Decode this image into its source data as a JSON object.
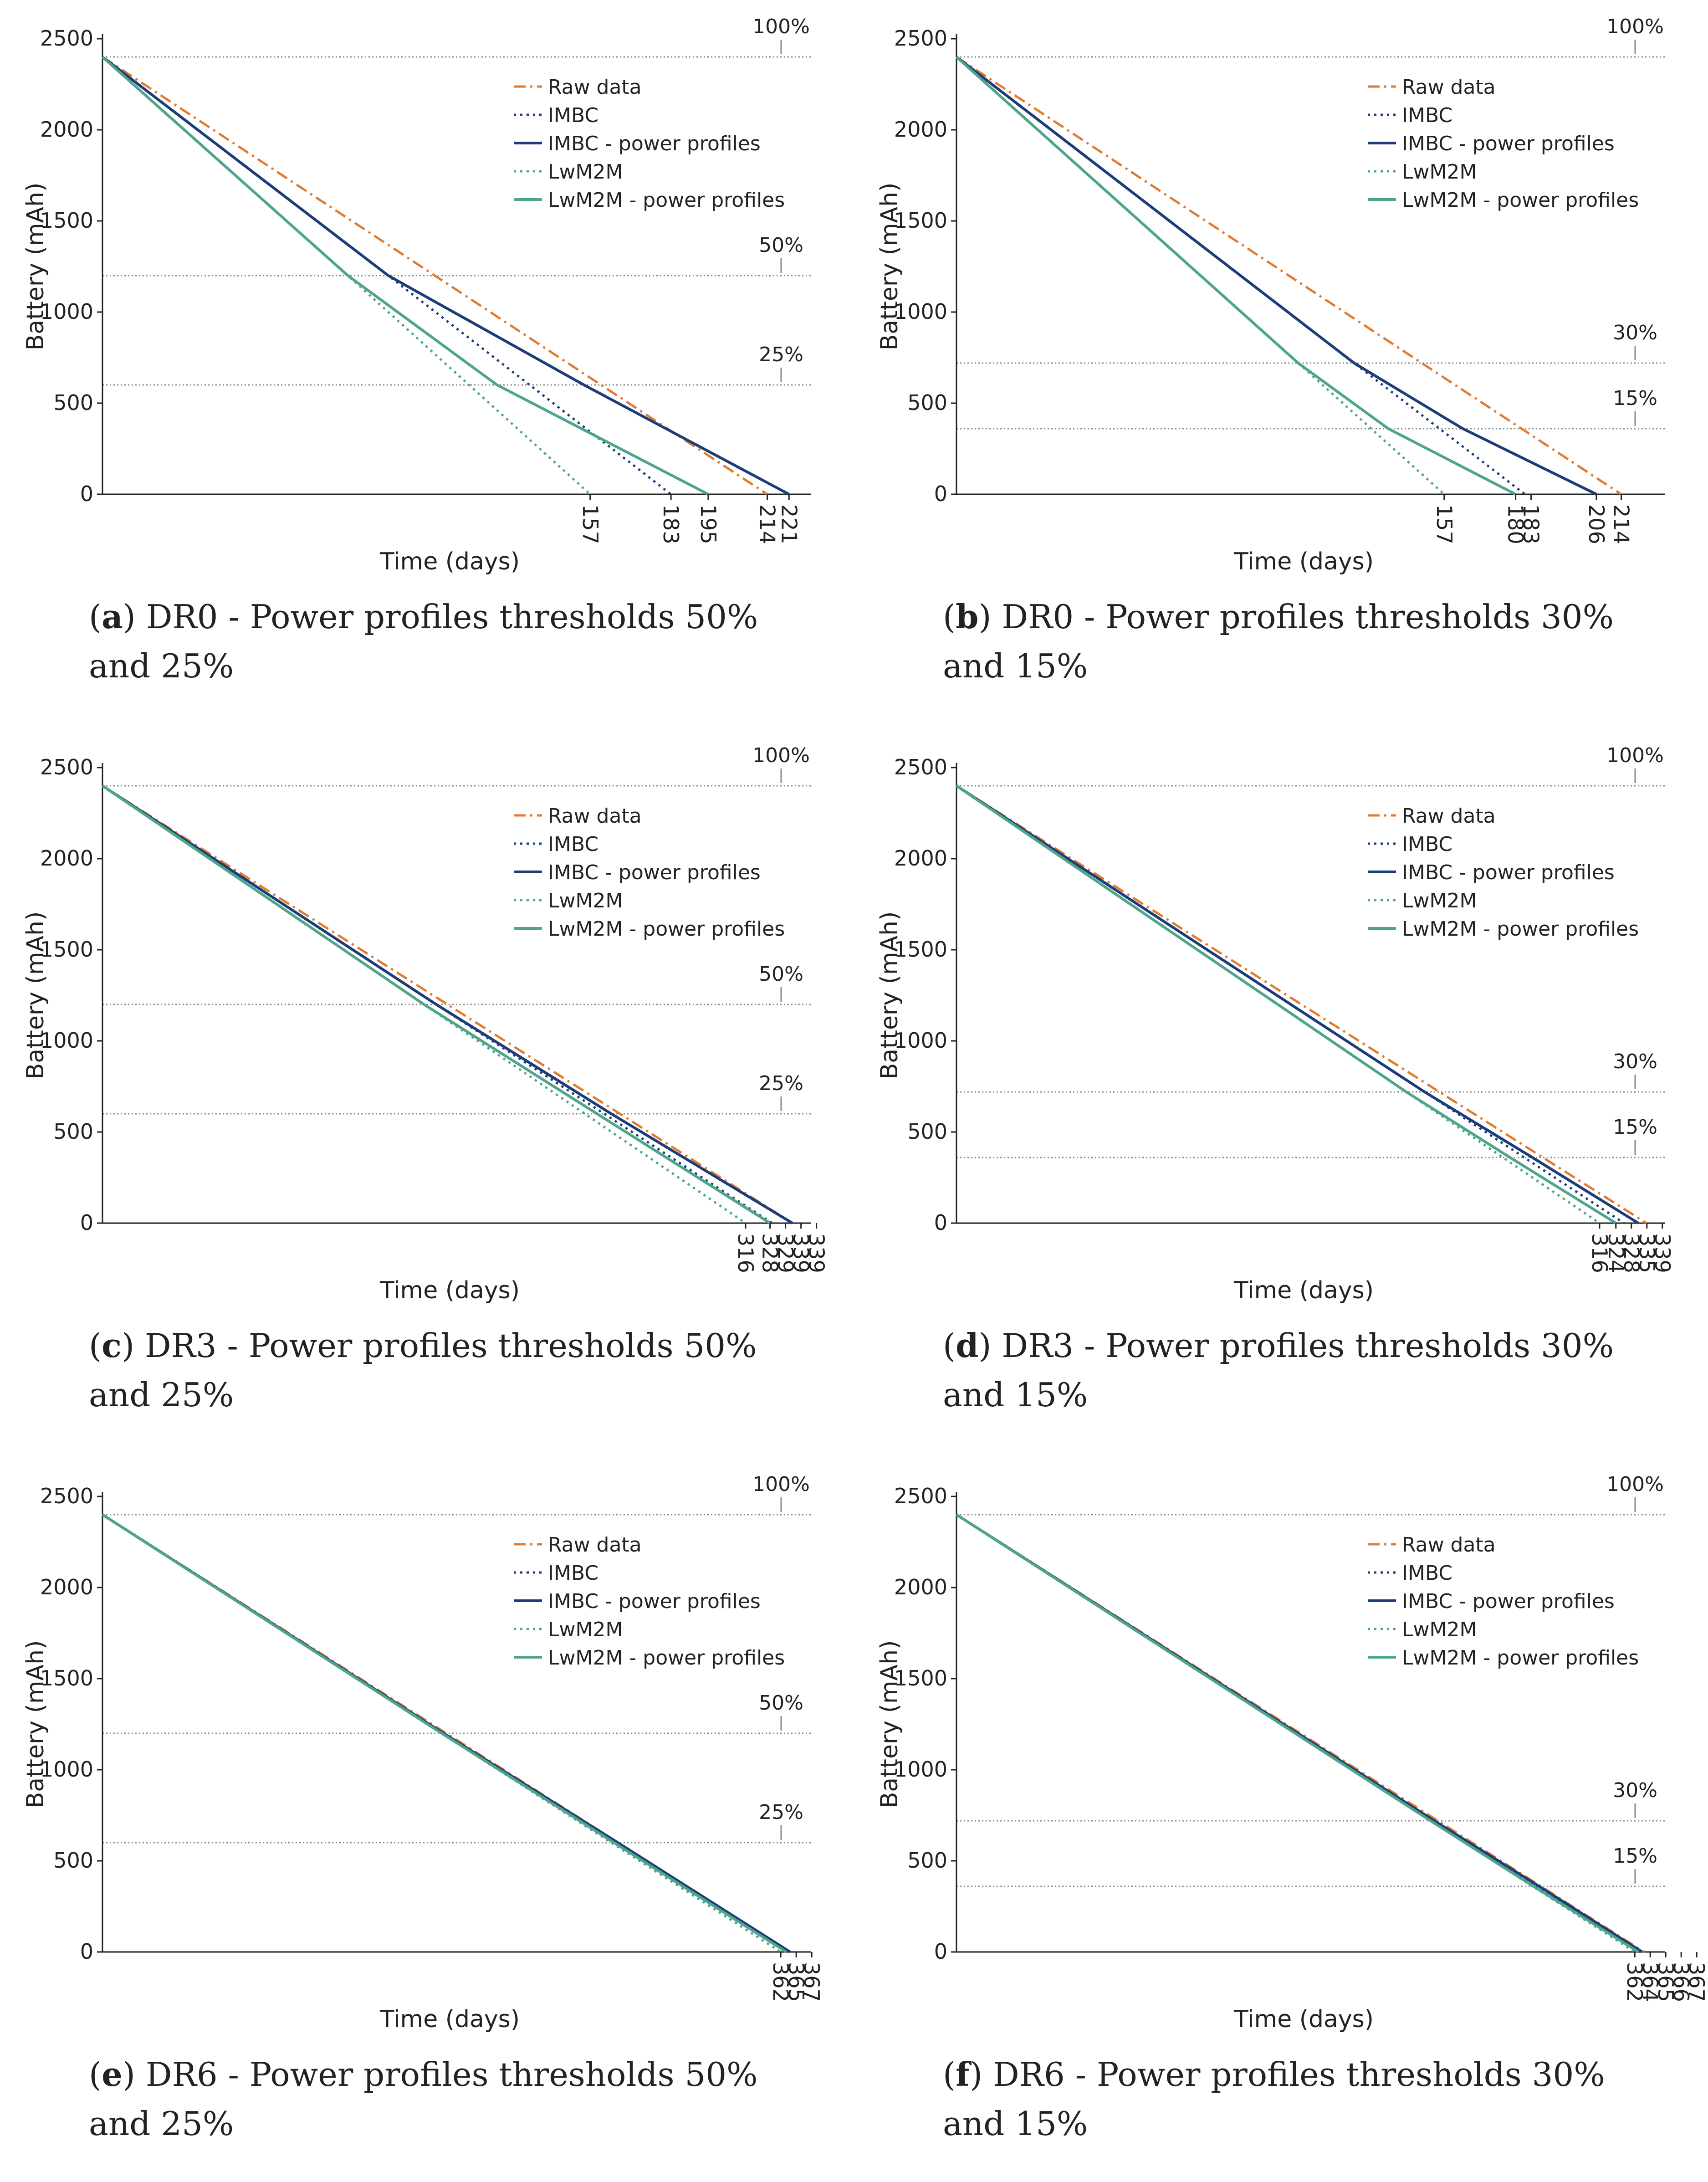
{
  "colors": {
    "raw": "#e07b30",
    "imbc": "#1c3d7a",
    "lwm2m": "#4fa58a",
    "ref": "#888888",
    "axis": "#222222"
  },
  "chart_data": [
    {
      "id": "a",
      "type": "line",
      "caption": {
        "letter": "a",
        "text": " DR0 - Power profiles thresholds 50% and 25%"
      },
      "xlabel": "Time (days)",
      "ylabel": "Battery (mAh)",
      "xlim": [
        0,
        228
      ],
      "ylim": [
        0,
        2500
      ],
      "yticks": [
        0,
        500,
        1000,
        1500,
        2000,
        2500
      ],
      "xticks": [
        "157",
        "183",
        "195",
        "214",
        "221"
      ],
      "reference_lines": [
        {
          "y": 2400,
          "label": "100%"
        },
        {
          "y": 1200,
          "label": "50%"
        },
        {
          "y": 600,
          "label": "25%"
        }
      ],
      "series": [
        {
          "name": "Raw data",
          "style": "dashdot",
          "color": "raw",
          "x": [
            0,
            214
          ],
          "y": [
            2400,
            0
          ]
        },
        {
          "name": "IMBC",
          "style": "dotted",
          "color": "imbc",
          "x": [
            0,
            92,
            183
          ],
          "y": [
            2400,
            1200,
            0
          ]
        },
        {
          "name": "IMBC - power profiles",
          "style": "solid",
          "color": "imbc",
          "x": [
            0,
            92,
            155,
            221
          ],
          "y": [
            2400,
            1200,
            600,
            0
          ]
        },
        {
          "name": "LwM2M",
          "style": "dotted",
          "color": "lwm2m",
          "x": [
            0,
            79,
            157
          ],
          "y": [
            2400,
            1200,
            0
          ]
        },
        {
          "name": "LwM2M - power profiles",
          "style": "solid",
          "color": "lwm2m",
          "x": [
            0,
            79,
            127,
            195
          ],
          "y": [
            2400,
            1200,
            600,
            0
          ]
        }
      ]
    },
    {
      "id": "b",
      "type": "line",
      "caption": {
        "letter": "b",
        "text": " DR0 - Power profiles thresholds 30% and 15%"
      },
      "xlabel": "Time (days)",
      "ylabel": "Battery (mAh)",
      "xlim": [
        0,
        228
      ],
      "ylim": [
        0,
        2500
      ],
      "yticks": [
        0,
        500,
        1000,
        1500,
        2000,
        2500
      ],
      "xticks": [
        "157",
        "180",
        "183",
        "206",
        "214"
      ],
      "reference_lines": [
        {
          "y": 2400,
          "label": "100%"
        },
        {
          "y": 720,
          "label": "30%"
        },
        {
          "y": 360,
          "label": "15%"
        }
      ],
      "series": [
        {
          "name": "Raw data",
          "style": "dashdot",
          "color": "raw",
          "x": [
            0,
            214
          ],
          "y": [
            2400,
            0
          ]
        },
        {
          "name": "IMBC",
          "style": "dotted",
          "color": "imbc",
          "x": [
            0,
            128,
            183
          ],
          "y": [
            2400,
            720,
            0
          ]
        },
        {
          "name": "IMBC - power profiles",
          "style": "solid",
          "color": "imbc",
          "x": [
            0,
            128,
            163,
            206
          ],
          "y": [
            2400,
            720,
            360,
            0
          ]
        },
        {
          "name": "LwM2M",
          "style": "dotted",
          "color": "lwm2m",
          "x": [
            0,
            110,
            157
          ],
          "y": [
            2400,
            720,
            0
          ]
        },
        {
          "name": "LwM2M - power profiles",
          "style": "solid",
          "color": "lwm2m",
          "x": [
            0,
            110,
            139,
            180
          ],
          "y": [
            2400,
            720,
            360,
            0
          ]
        }
      ]
    },
    {
      "id": "c",
      "type": "line",
      "caption": {
        "letter": "c",
        "text": " DR3 - Power profiles thresholds 50% and 25%"
      },
      "xlabel": "Time (days)",
      "ylabel": "Battery (mAh)",
      "xlim": [
        0,
        348
      ],
      "ylim": [
        0,
        2500
      ],
      "yticks": [
        0,
        500,
        1000,
        1500,
        2000,
        2500
      ],
      "xticks": [
        "316",
        "328",
        "329",
        "339",
        "339"
      ],
      "reference_lines": [
        {
          "y": 2400,
          "label": "100%"
        },
        {
          "y": 1200,
          "label": "50%"
        },
        {
          "y": 600,
          "label": "25%"
        }
      ],
      "series": [
        {
          "name": "Raw data",
          "style": "dashdot",
          "color": "raw",
          "x": [
            0,
            339
          ],
          "y": [
            2400,
            0
          ]
        },
        {
          "name": "IMBC",
          "style": "dotted",
          "color": "imbc",
          "x": [
            0,
            164,
            329
          ],
          "y": [
            2400,
            1200,
            0
          ]
        },
        {
          "name": "IMBC - power profiles",
          "style": "solid",
          "color": "imbc",
          "x": [
            0,
            164,
            250,
            339
          ],
          "y": [
            2400,
            1200,
            600,
            0
          ]
        },
        {
          "name": "LwM2M",
          "style": "dotted",
          "color": "lwm2m",
          "x": [
            0,
            158,
            316
          ],
          "y": [
            2400,
            1200,
            0
          ]
        },
        {
          "name": "LwM2M - power profiles",
          "style": "solid",
          "color": "lwm2m",
          "x": [
            0,
            158,
            243,
            328
          ],
          "y": [
            2400,
            1200,
            600,
            0
          ]
        }
      ]
    },
    {
      "id": "d",
      "type": "line",
      "caption": {
        "letter": "d",
        "text": " DR3 - Power profiles thresholds 30% and 15%"
      },
      "xlabel": "Time (days)",
      "ylabel": "Battery (mAh)",
      "xlim": [
        0,
        348
      ],
      "ylim": [
        0,
        2500
      ],
      "yticks": [
        0,
        500,
        1000,
        1500,
        2000,
        2500
      ],
      "xticks": [
        "316",
        "324",
        "328",
        "335",
        "339"
      ],
      "reference_lines": [
        {
          "y": 2400,
          "label": "100%"
        },
        {
          "y": 720,
          "label": "30%"
        },
        {
          "y": 360,
          "label": "15%"
        }
      ],
      "series": [
        {
          "name": "Raw data",
          "style": "dashdot",
          "color": "raw",
          "x": [
            0,
            339
          ],
          "y": [
            2400,
            0
          ]
        },
        {
          "name": "IMBC",
          "style": "dotted",
          "color": "imbc",
          "x": [
            0,
            230,
            328
          ],
          "y": [
            2400,
            720,
            0
          ]
        },
        {
          "name": "IMBC - power profiles",
          "style": "solid",
          "color": "imbc",
          "x": [
            0,
            230,
            283,
            335
          ],
          "y": [
            2400,
            720,
            360,
            0
          ]
        },
        {
          "name": "LwM2M",
          "style": "dotted",
          "color": "lwm2m",
          "x": [
            0,
            221,
            316
          ],
          "y": [
            2400,
            720,
            0
          ]
        },
        {
          "name": "LwM2M - power profiles",
          "style": "solid",
          "color": "lwm2m",
          "x": [
            0,
            221,
            272,
            324
          ],
          "y": [
            2400,
            720,
            360,
            0
          ]
        }
      ]
    },
    {
      "id": "e",
      "type": "line",
      "caption": {
        "letter": "e",
        "text": " DR6 - Power profiles thresholds 50% and 25%"
      },
      "xlabel": "Time (days)",
      "ylabel": "Battery (mAh)",
      "xlim": [
        0,
        378
      ],
      "ylim": [
        0,
        2500
      ],
      "yticks": [
        0,
        500,
        1000,
        1500,
        2000,
        2500
      ],
      "xticks": [
        "362",
        "365",
        "367"
      ],
      "reference_lines": [
        {
          "y": 2400,
          "label": "100%"
        },
        {
          "y": 1200,
          "label": "50%"
        },
        {
          "y": 600,
          "label": "25%"
        }
      ],
      "series": [
        {
          "name": "Raw data",
          "style": "dashdot",
          "color": "raw",
          "x": [
            0,
            367
          ],
          "y": [
            2400,
            0
          ]
        },
        {
          "name": "IMBC",
          "style": "dotted",
          "color": "imbc",
          "x": [
            0,
            182,
            365
          ],
          "y": [
            2400,
            1200,
            0
          ]
        },
        {
          "name": "IMBC - power profiles",
          "style": "solid",
          "color": "imbc",
          "x": [
            0,
            182,
            275,
            367
          ],
          "y": [
            2400,
            1200,
            600,
            0
          ]
        },
        {
          "name": "LwM2M",
          "style": "dotted",
          "color": "lwm2m",
          "x": [
            0,
            181,
            362
          ],
          "y": [
            2400,
            1200,
            0
          ]
        },
        {
          "name": "LwM2M - power profiles",
          "style": "solid",
          "color": "lwm2m",
          "x": [
            0,
            181,
            273,
            365
          ],
          "y": [
            2400,
            1200,
            600,
            0
          ]
        }
      ]
    },
    {
      "id": "f",
      "type": "line",
      "caption": {
        "letter": "f",
        "text": " DR6 - Power profiles thresholds 30% and 15%"
      },
      "xlabel": "Time (days)",
      "ylabel": "Battery (mAh)",
      "xlim": [
        0,
        378
      ],
      "ylim": [
        0,
        2500
      ],
      "yticks": [
        0,
        500,
        1000,
        1500,
        2000,
        2500
      ],
      "xticks": [
        "362",
        "364",
        "365",
        "366",
        "367"
      ],
      "reference_lines": [
        {
          "y": 2400,
          "label": "100%"
        },
        {
          "y": 720,
          "label": "30%"
        },
        {
          "y": 360,
          "label": "15%"
        }
      ],
      "series": [
        {
          "name": "Raw data",
          "style": "dashdot",
          "color": "raw",
          "x": [
            0,
            367
          ],
          "y": [
            2400,
            0
          ]
        },
        {
          "name": "IMBC",
          "style": "dotted",
          "color": "imbc",
          "x": [
            0,
            255,
            365
          ],
          "y": [
            2400,
            720,
            0
          ]
        },
        {
          "name": "IMBC - power profiles",
          "style": "solid",
          "color": "imbc",
          "x": [
            0,
            255,
            311,
            366
          ],
          "y": [
            2400,
            720,
            360,
            0
          ]
        },
        {
          "name": "LwM2M",
          "style": "dotted",
          "color": "lwm2m",
          "x": [
            0,
            253,
            362
          ],
          "y": [
            2400,
            720,
            0
          ]
        },
        {
          "name": "LwM2M - power profiles",
          "style": "solid",
          "color": "lwm2m",
          "x": [
            0,
            253,
            308,
            364
          ],
          "y": [
            2400,
            720,
            360,
            0
          ]
        }
      ]
    }
  ]
}
